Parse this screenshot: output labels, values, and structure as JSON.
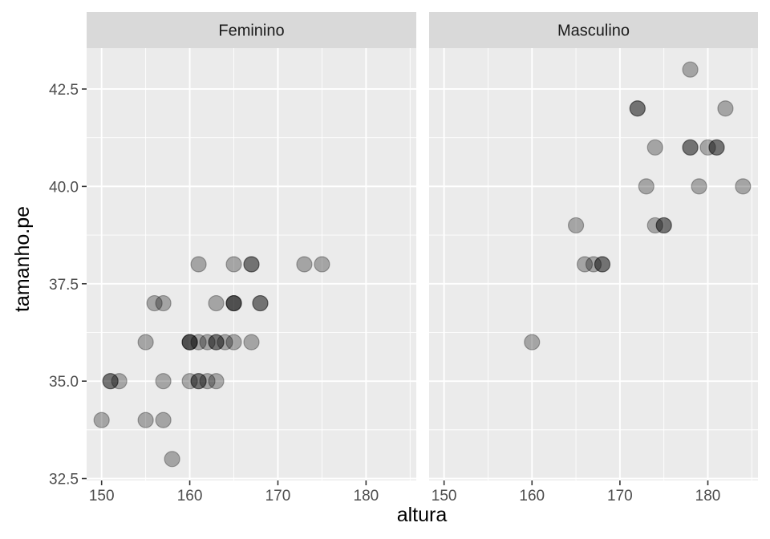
{
  "chart_data": {
    "type": "scatter",
    "xlabel": "altura",
    "ylabel": "tamanho.pe",
    "xlim": [
      148.3,
      185.7
    ],
    "ylim": [
      32.45,
      43.55
    ],
    "x_ticks": [
      150,
      160,
      170,
      180
    ],
    "y_ticks": [
      32.5,
      35.0,
      37.5,
      40.0,
      42.5
    ],
    "x_tick_labels": [
      "150",
      "160",
      "170",
      "180"
    ],
    "y_tick_labels": [
      "32.5",
      "35.0",
      "37.5",
      "40.0",
      "42.5"
    ],
    "grid": true,
    "point_color": "#000000",
    "point_alpha": 0.3,
    "panel_bg": "#ebebeb",
    "strip_bg": "#d9d9d9",
    "panels": [
      {
        "label": "Feminino",
        "points": [
          {
            "x": 150,
            "y": 34
          },
          {
            "x": 155,
            "y": 34
          },
          {
            "x": 157,
            "y": 34
          },
          {
            "x": 158,
            "y": 33
          },
          {
            "x": 151,
            "y": 35
          },
          {
            "x": 151,
            "y": 35
          },
          {
            "x": 152,
            "y": 35
          },
          {
            "x": 157,
            "y": 35
          },
          {
            "x": 160,
            "y": 35
          },
          {
            "x": 161,
            "y": 35
          },
          {
            "x": 161,
            "y": 35
          },
          {
            "x": 162,
            "y": 35
          },
          {
            "x": 163,
            "y": 35
          },
          {
            "x": 155,
            "y": 36
          },
          {
            "x": 160,
            "y": 36
          },
          {
            "x": 160,
            "y": 36
          },
          {
            "x": 160,
            "y": 36
          },
          {
            "x": 161,
            "y": 36
          },
          {
            "x": 162,
            "y": 36
          },
          {
            "x": 163,
            "y": 36
          },
          {
            "x": 163,
            "y": 36
          },
          {
            "x": 164,
            "y": 36
          },
          {
            "x": 165,
            "y": 36
          },
          {
            "x": 167,
            "y": 36
          },
          {
            "x": 156,
            "y": 37
          },
          {
            "x": 157,
            "y": 37
          },
          {
            "x": 163,
            "y": 37
          },
          {
            "x": 165,
            "y": 37
          },
          {
            "x": 165,
            "y": 37
          },
          {
            "x": 165,
            "y": 37
          },
          {
            "x": 168,
            "y": 37
          },
          {
            "x": 168,
            "y": 37
          },
          {
            "x": 161,
            "y": 38
          },
          {
            "x": 165,
            "y": 38
          },
          {
            "x": 167,
            "y": 38
          },
          {
            "x": 167,
            "y": 38
          },
          {
            "x": 173,
            "y": 38
          },
          {
            "x": 175,
            "y": 38
          }
        ]
      },
      {
        "label": "Masculino",
        "points": [
          {
            "x": 160,
            "y": 36
          },
          {
            "x": 166,
            "y": 38
          },
          {
            "x": 167,
            "y": 38
          },
          {
            "x": 168,
            "y": 38
          },
          {
            "x": 168,
            "y": 38
          },
          {
            "x": 165,
            "y": 39
          },
          {
            "x": 174,
            "y": 39
          },
          {
            "x": 175,
            "y": 39
          },
          {
            "x": 175,
            "y": 39
          },
          {
            "x": 173,
            "y": 40
          },
          {
            "x": 179,
            "y": 40
          },
          {
            "x": 184,
            "y": 40
          },
          {
            "x": 174,
            "y": 41
          },
          {
            "x": 178,
            "y": 41
          },
          {
            "x": 178,
            "y": 41
          },
          {
            "x": 180,
            "y": 41
          },
          {
            "x": 181,
            "y": 41
          },
          {
            "x": 181,
            "y": 41
          },
          {
            "x": 172,
            "y": 42
          },
          {
            "x": 172,
            "y": 42
          },
          {
            "x": 182,
            "y": 42
          },
          {
            "x": 178,
            "y": 43
          }
        ]
      }
    ]
  }
}
